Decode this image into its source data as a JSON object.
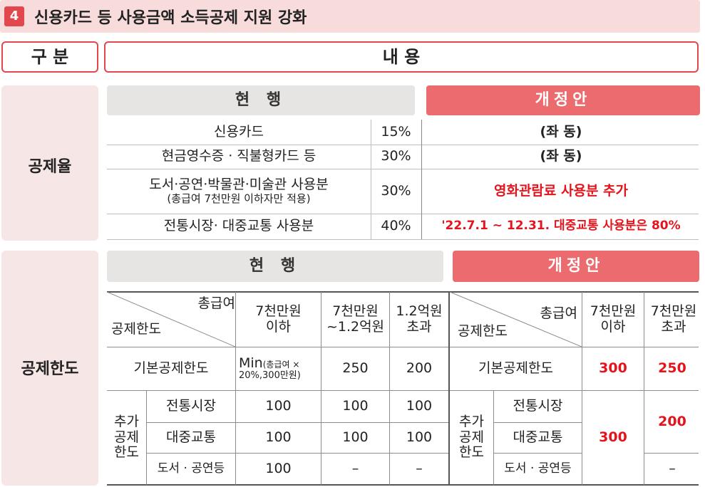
{
  "title": {
    "number": "4",
    "text": "신용카드 등 사용금액 소득공제 지원 강화"
  },
  "header": {
    "category": "구 분",
    "content": "내 용"
  },
  "deduction_rate": {
    "label": "공제율",
    "current_header": "현 행",
    "proposed_header": "개정안",
    "rows": [
      {
        "item": "신용카드",
        "item_sub": "",
        "rate": "15%",
        "proposed": "(좌 동)",
        "highlight": false
      },
      {
        "item": "현금영수증 · 직불형카드 등",
        "item_sub": "",
        "rate": "30%",
        "proposed": "(좌 동)",
        "highlight": false
      },
      {
        "item": "도서·공연·박물관·미술관 사용분",
        "item_sub": "(총급여 7천만원 이하자만 적용)",
        "rate": "30%",
        "proposed": "영화관람료 사용분 추가",
        "highlight": true
      },
      {
        "item": "전통시장· 대중교통 사용분",
        "item_sub": "",
        "rate": "40%",
        "proposed": "'22.7.1 ~ 12.31. 대중교통 사용분은 80%",
        "highlight": true
      }
    ]
  },
  "deduction_limit": {
    "label": "공제한도",
    "current_header": "현 행",
    "proposed_header": "개정안",
    "current": {
      "corner_top": "총급여",
      "corner_bottom": "공제한도",
      "columns": [
        "7천만원 이하",
        "7천만원 ~1.2억원",
        "1.2억원 초과"
      ],
      "basic_label": "기본공제한도",
      "basic_values": {
        "min_main": "Min",
        "min_sub1": "(총급여 ×",
        "min_sub2": "20%,300만원)",
        "mid": "250",
        "high": "200"
      },
      "extra_label": [
        "추가",
        "공제",
        "한도"
      ],
      "extra_rows": [
        {
          "label": "전통시장",
          "values": [
            "100",
            "100",
            "100"
          ]
        },
        {
          "label": "대중교통",
          "values": [
            "100",
            "100",
            "100"
          ]
        },
        {
          "label": "도서 · 공연등",
          "values": [
            "100",
            "–",
            "–"
          ]
        }
      ]
    },
    "proposed": {
      "corner_top": "총급여",
      "corner_bottom": "공제한도",
      "columns": [
        "7천만원 이하",
        "7천만원 초과"
      ],
      "basic_label": "기본공제한도",
      "basic_values": [
        "300",
        "250"
      ],
      "extra_label": [
        "추가",
        "공제",
        "한도"
      ],
      "extra_rows": [
        "전통시장",
        "대중교통",
        "도서 · 공연등"
      ],
      "extra_low": "300",
      "extra_high_top": "200",
      "extra_high_bottom": "–"
    }
  },
  "colors": {
    "accent": "#e2474e",
    "proposed_header": "#ec6b6e",
    "side_bg": "#f6e7e6",
    "highlight_text": "#e4141c"
  }
}
